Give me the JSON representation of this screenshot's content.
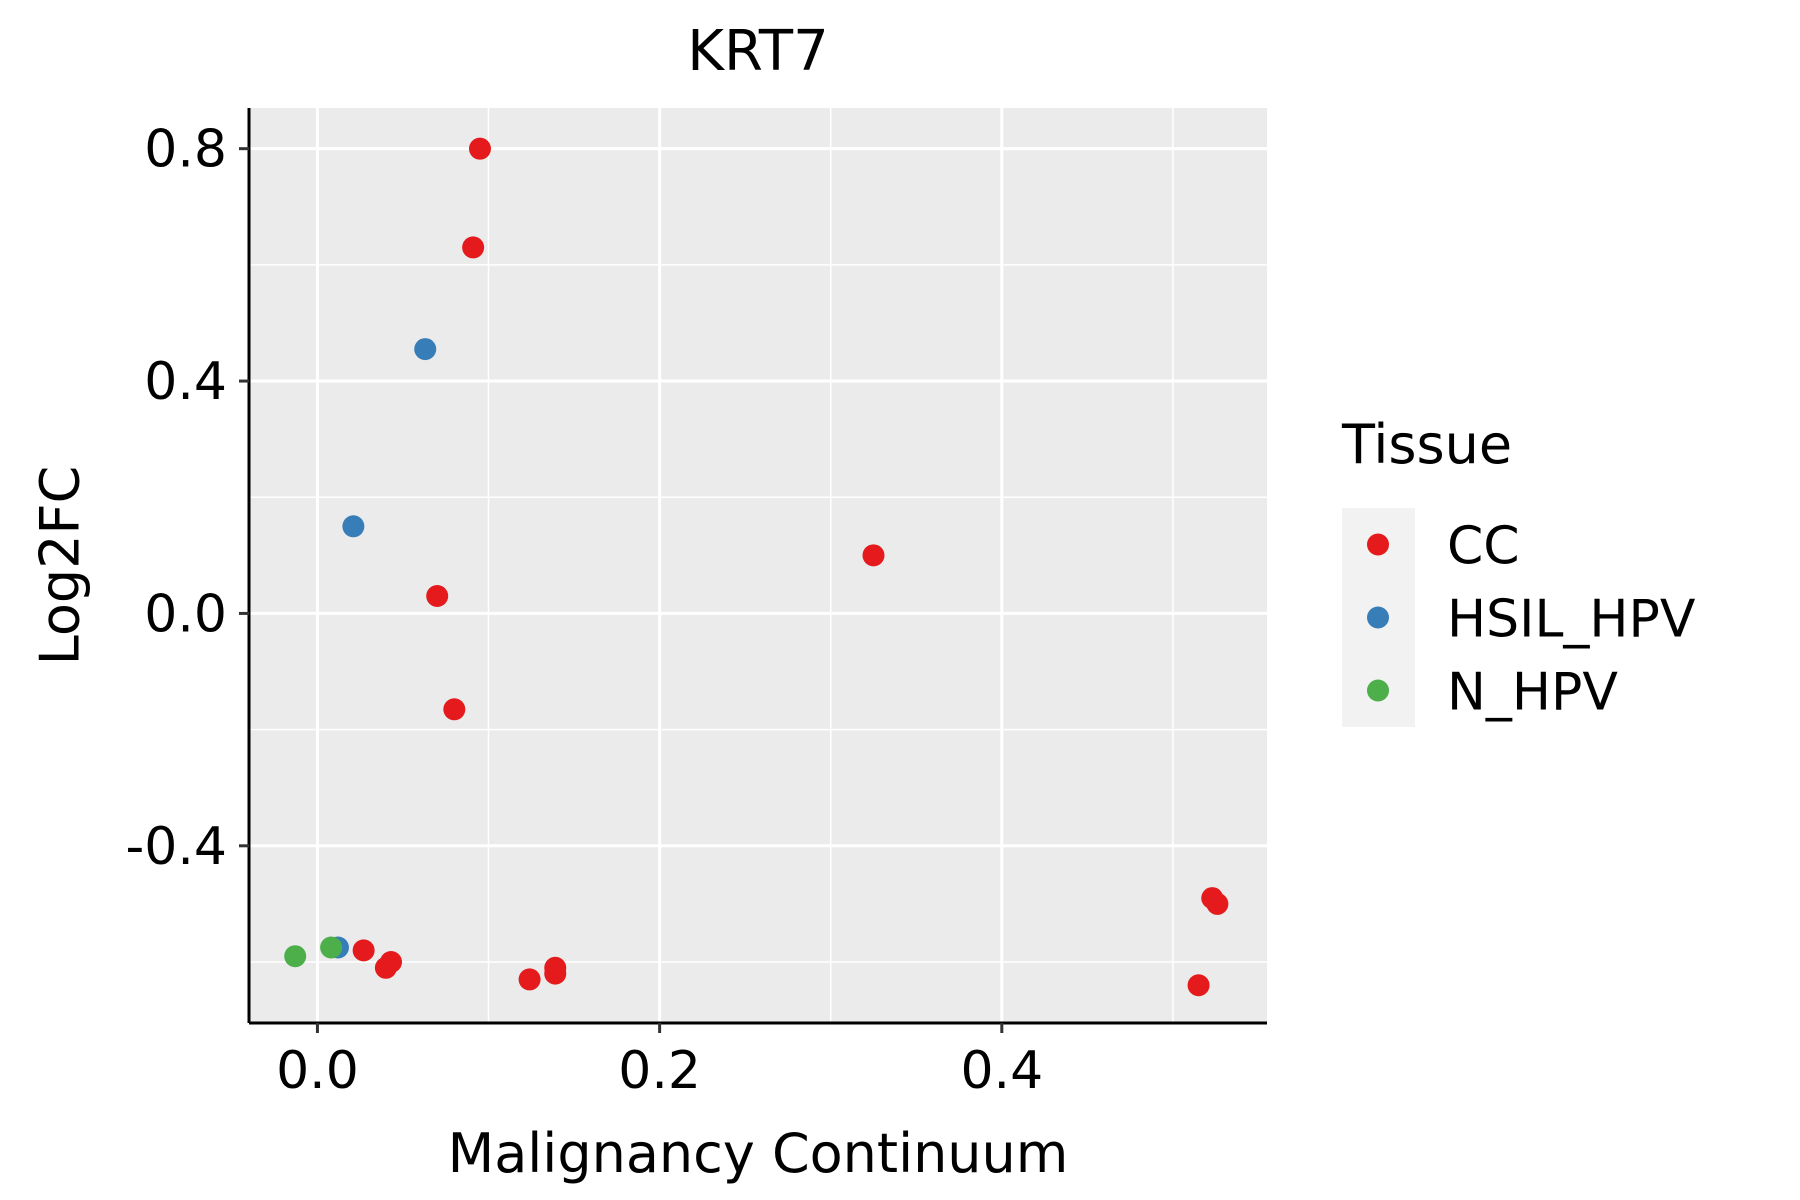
{
  "chart_data": {
    "type": "scatter",
    "title": "KRT7",
    "xlabel": "Malignancy Continuum",
    "ylabel": "Log2FC",
    "xlim": [
      -0.04,
      0.555
    ],
    "ylim": [
      -0.705,
      0.87
    ],
    "xticks": [
      0.0,
      0.2,
      0.4
    ],
    "xtick_labels": [
      "0.0",
      "0.2",
      "0.4"
    ],
    "yticks": [
      0.8,
      0.4,
      0.0,
      -0.4
    ],
    "ytick_labels": [
      "0.8",
      "0.4",
      "0.0",
      "-0.4"
    ],
    "x_minor_breaks": [
      -0.1,
      0.1,
      0.3,
      0.5
    ],
    "y_minor_breaks": [
      0.6,
      0.2,
      -0.2,
      -0.6
    ],
    "grid": true,
    "legend": {
      "title": "Tissue",
      "position": "right",
      "entries": [
        {
          "name": "CC",
          "color": "#E41A1C"
        },
        {
          "name": "HSIL_HPV",
          "color": "#377EB8"
        },
        {
          "name": "N_HPV",
          "color": "#4DAF4A"
        }
      ]
    },
    "series": [
      {
        "name": "CC",
        "color": "#E41A1C",
        "points": [
          {
            "x": 0.095,
            "y": 0.8
          },
          {
            "x": 0.091,
            "y": 0.63
          },
          {
            "x": 0.07,
            "y": 0.03
          },
          {
            "x": 0.08,
            "y": -0.165
          },
          {
            "x": 0.325,
            "y": 0.1
          },
          {
            "x": 0.027,
            "y": -0.58
          },
          {
            "x": 0.043,
            "y": -0.6
          },
          {
            "x": 0.04,
            "y": -0.61
          },
          {
            "x": 0.124,
            "y": -0.63
          },
          {
            "x": 0.139,
            "y": -0.61
          },
          {
            "x": 0.139,
            "y": -0.62
          },
          {
            "x": 0.523,
            "y": -0.49
          },
          {
            "x": 0.526,
            "y": -0.5
          },
          {
            "x": 0.515,
            "y": -0.64
          }
        ]
      },
      {
        "name": "HSIL_HPV",
        "color": "#377EB8",
        "points": [
          {
            "x": 0.063,
            "y": 0.455
          },
          {
            "x": 0.021,
            "y": 0.15
          },
          {
            "x": 0.012,
            "y": -0.575
          }
        ]
      },
      {
        "name": "N_HPV",
        "color": "#4DAF4A",
        "points": [
          {
            "x": -0.013,
            "y": -0.59
          },
          {
            "x": 0.008,
            "y": -0.575
          }
        ]
      }
    ]
  }
}
